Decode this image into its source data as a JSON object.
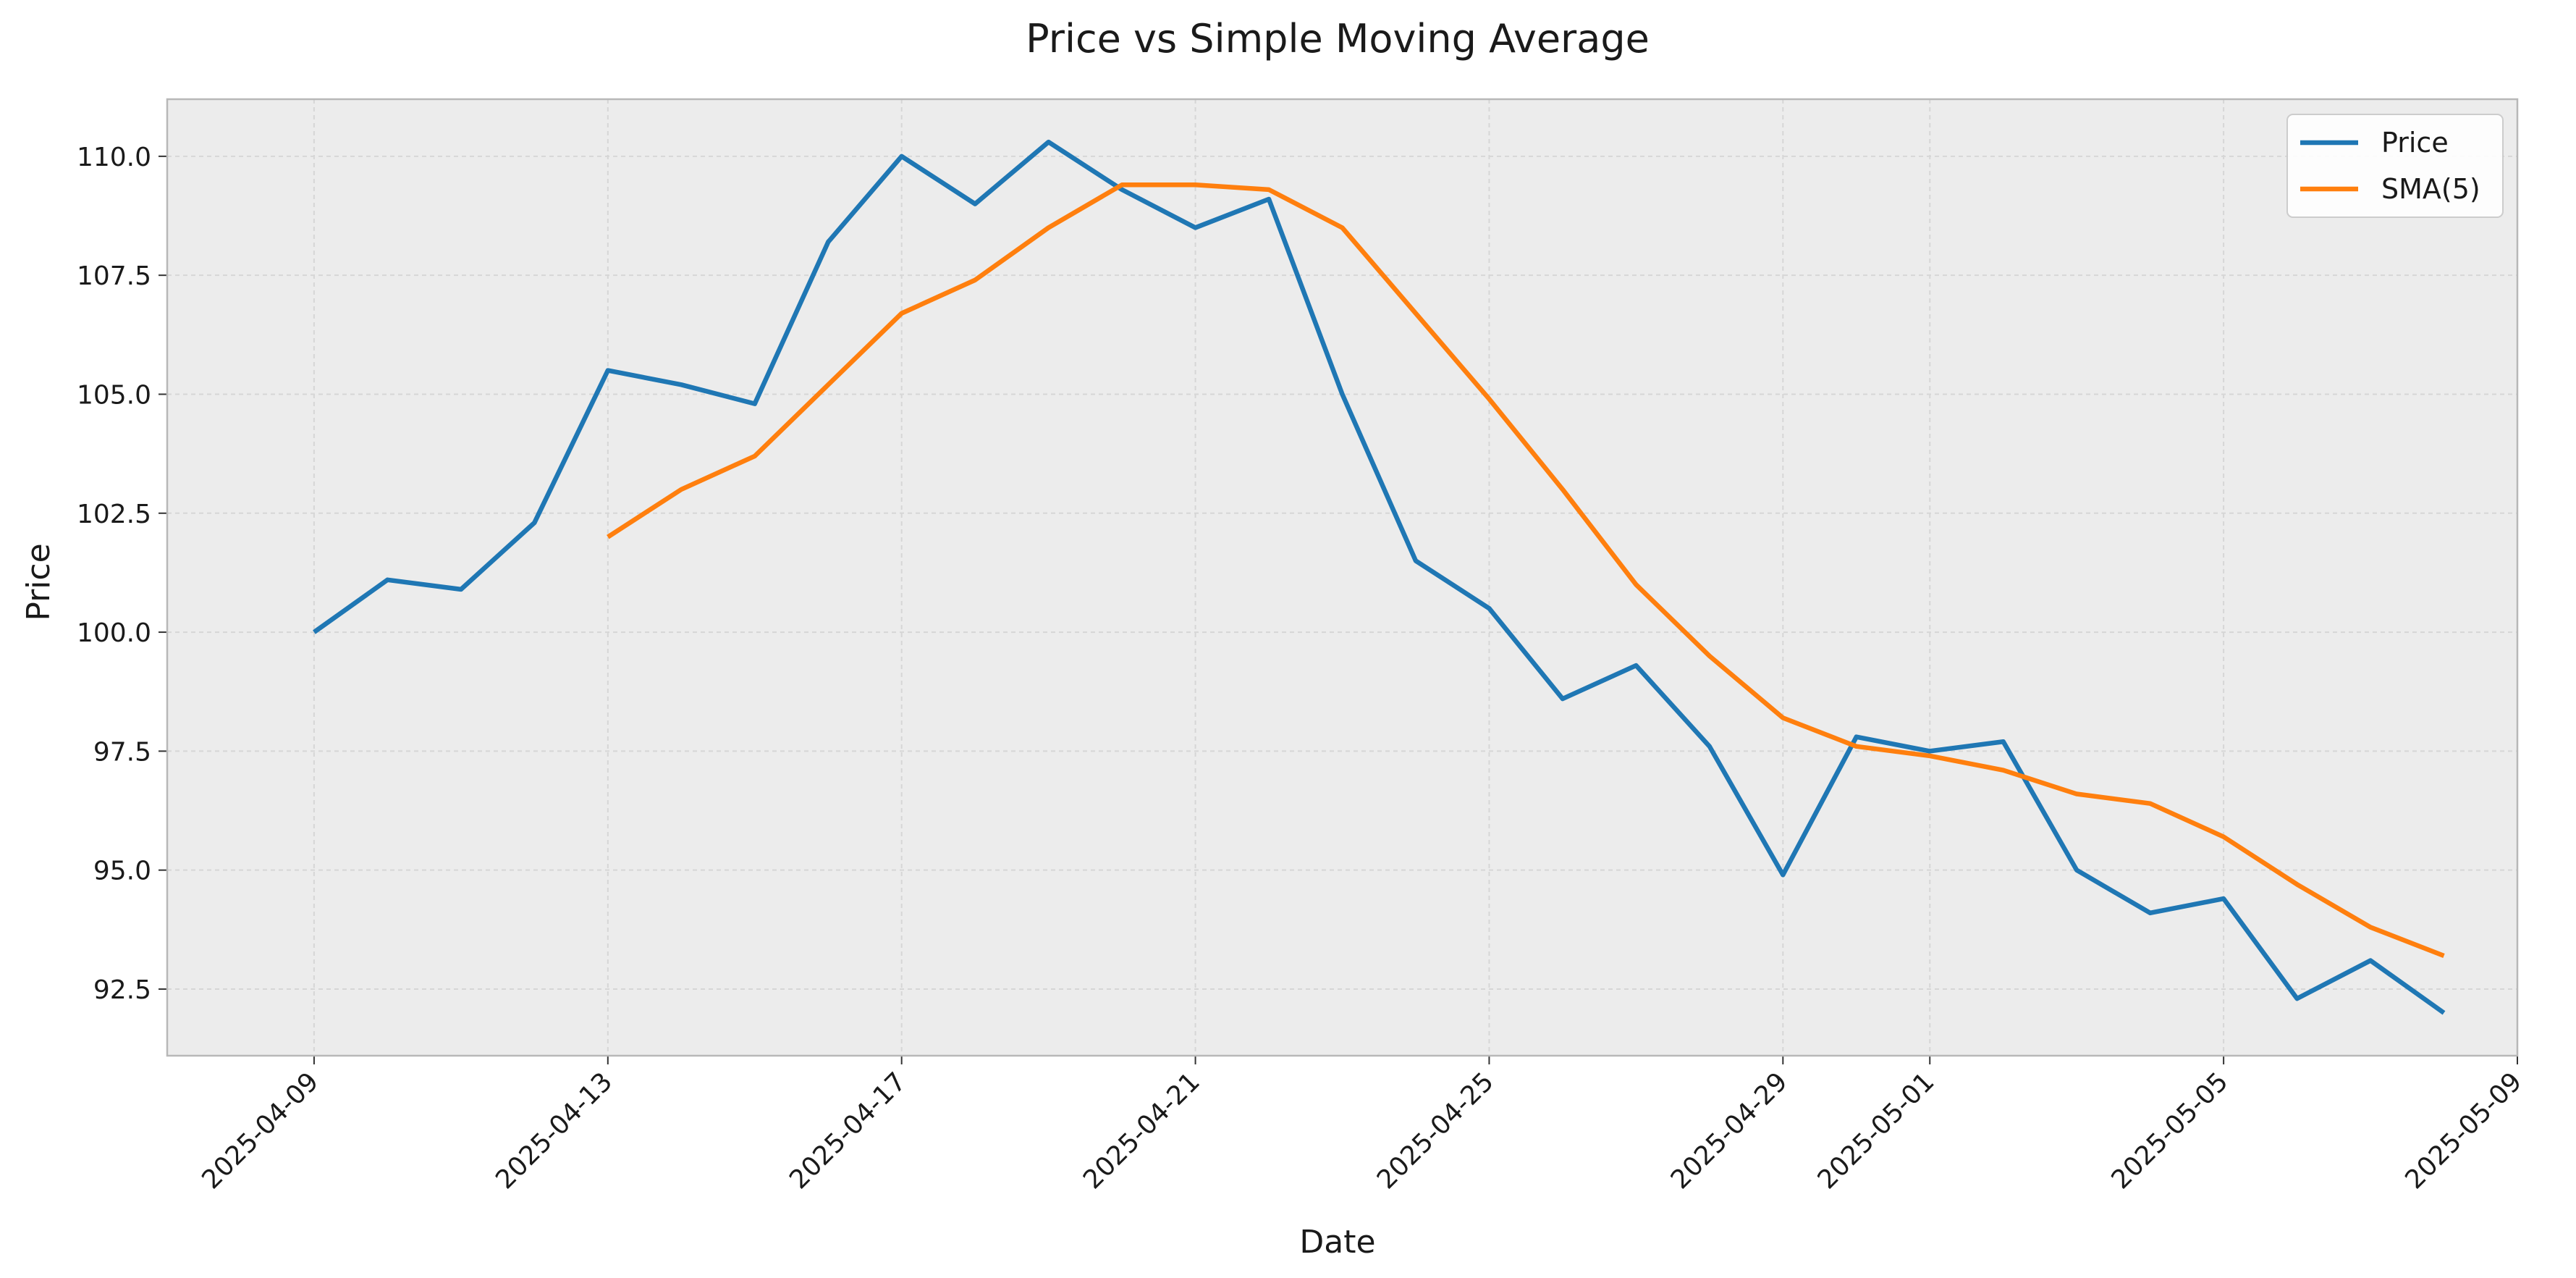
{
  "chart_data": {
    "type": "line",
    "title": "Price vs Simple Moving Average",
    "xlabel": "Date",
    "ylabel": "Price",
    "x_type": "date",
    "x": [
      "2025-04-09",
      "2025-04-10",
      "2025-04-11",
      "2025-04-12",
      "2025-04-13",
      "2025-04-14",
      "2025-04-15",
      "2025-04-16",
      "2025-04-17",
      "2025-04-18",
      "2025-04-19",
      "2025-04-20",
      "2025-04-21",
      "2025-04-22",
      "2025-04-23",
      "2025-04-24",
      "2025-04-25",
      "2025-04-26",
      "2025-04-27",
      "2025-04-28",
      "2025-04-29",
      "2025-04-30",
      "2025-05-01",
      "2025-05-02",
      "2025-05-03",
      "2025-05-04",
      "2025-05-05",
      "2025-05-06",
      "2025-05-07",
      "2025-05-08"
    ],
    "series": [
      {
        "name": "Price",
        "color": "#1f77b4",
        "values": [
          100.0,
          101.1,
          100.9,
          102.3,
          105.5,
          105.2,
          104.8,
          108.2,
          110.0,
          109.0,
          110.3,
          109.3,
          108.5,
          109.1,
          105.0,
          101.5,
          100.5,
          98.6,
          99.3,
          97.6,
          94.9,
          97.8,
          97.5,
          97.7,
          95.0,
          94.1,
          94.4,
          92.3,
          93.1,
          92.0
        ]
      },
      {
        "name": "SMA(5)",
        "color": "#ff7f0e",
        "values": [
          null,
          null,
          null,
          null,
          102.0,
          103.0,
          103.7,
          105.2,
          106.7,
          107.4,
          108.5,
          109.4,
          109.4,
          109.3,
          108.5,
          106.7,
          104.9,
          103.0,
          101.0,
          99.5,
          98.2,
          97.6,
          97.4,
          97.1,
          96.6,
          96.4,
          95.7,
          94.7,
          93.8,
          93.2
        ]
      }
    ],
    "x_ticks": [
      "2025-04-09",
      "2025-04-13",
      "2025-04-17",
      "2025-04-21",
      "2025-04-25",
      "2025-04-29",
      "2025-05-01",
      "2025-05-05",
      "2025-05-09"
    ],
    "x_range": [
      "2025-04-07",
      "2025-05-09"
    ],
    "y_ticks": [
      92.5,
      95.0,
      97.5,
      100.0,
      102.5,
      105.0,
      107.5,
      110.0
    ],
    "ylim": [
      91.1,
      111.2
    ],
    "grid": true,
    "legend_position": "top-right",
    "plot_background": "#ececec"
  }
}
